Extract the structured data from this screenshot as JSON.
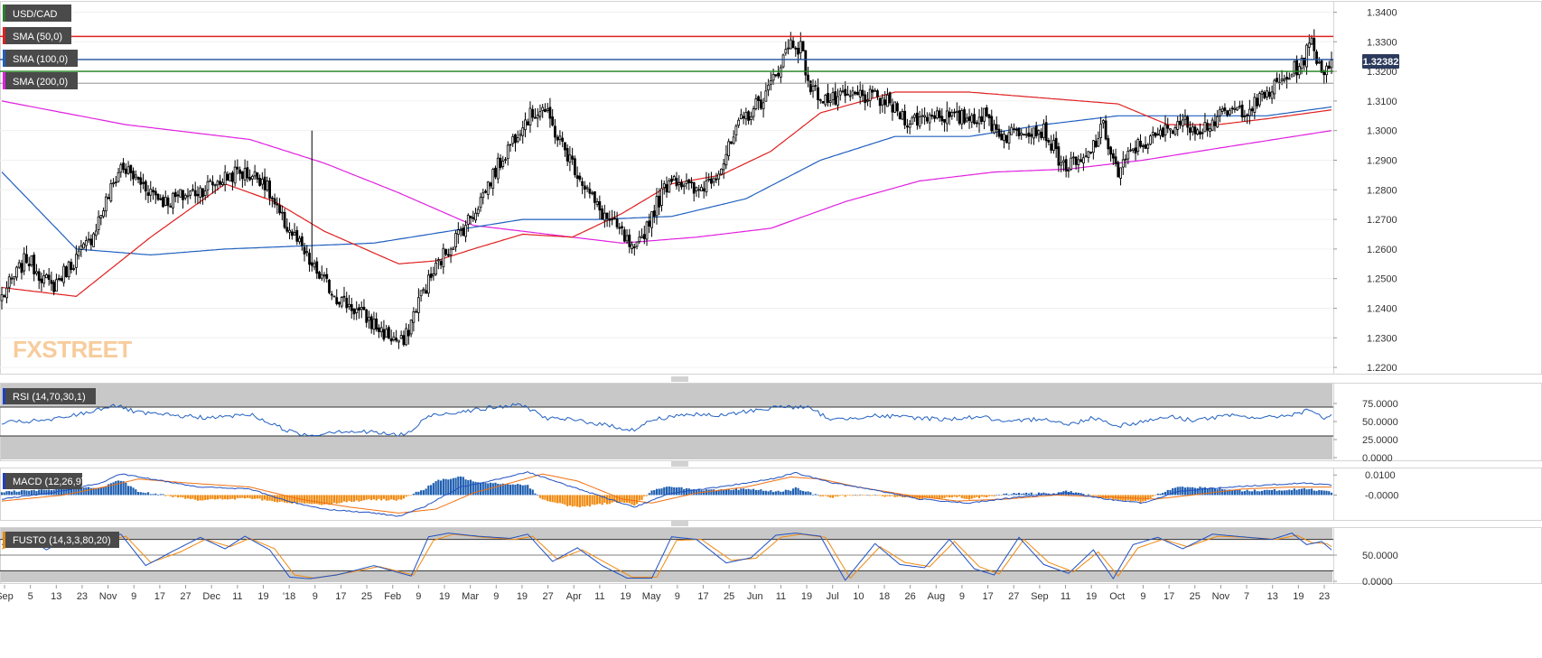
{
  "chart_data": {
    "type": "candlestick",
    "instrument": "USD/CAD",
    "indicator_labels": [
      "SMA (50,0)",
      "SMA (100,0)",
      "SMA (200,0)"
    ],
    "last_price_label": "1.32382",
    "watermark": "FXSTREET",
    "x_ticks": [
      "Sep",
      "5",
      "13",
      "23",
      "Nov",
      "9",
      "17",
      "27",
      "Dec",
      "11",
      "19",
      "'18",
      "9",
      "17",
      "25",
      "Feb",
      "9",
      "19",
      "Mar",
      "9",
      "19",
      "27",
      "Apr",
      "11",
      "19",
      "May",
      "9",
      "17",
      "25",
      "Jun",
      "11",
      "19",
      "Jul",
      "10",
      "18",
      "26",
      "Aug",
      "9",
      "17",
      "27",
      "Sep",
      "11",
      "19",
      "Oct",
      "9",
      "17",
      "25",
      "Nov",
      "7",
      "13",
      "19",
      "23"
    ],
    "y_ticks": [
      "1.3400",
      "1.3300",
      "1.3200",
      "1.3100",
      "1.3000",
      "1.2900",
      "1.2800",
      "1.2700",
      "1.2600",
      "1.2500",
      "1.2400",
      "1.2300",
      "1.2200"
    ],
    "ylim": [
      1.2185,
      1.3435
    ],
    "horizontal_levels": [
      {
        "value": 1.3318,
        "color": "#e02020"
      },
      {
        "value": 1.324,
        "color": "#1f4e99"
      },
      {
        "value": 1.32,
        "color": "#1a7f1a"
      },
      {
        "value": 1.316,
        "color": "#808080"
      }
    ],
    "anchors_close": [
      [
        0,
        1.244
      ],
      [
        10,
        1.257
      ],
      [
        20,
        1.247
      ],
      [
        35,
        1.262
      ],
      [
        48,
        1.288
      ],
      [
        58,
        1.281
      ],
      [
        66,
        1.276
      ],
      [
        80,
        1.28
      ],
      [
        95,
        1.286
      ],
      [
        105,
        1.284
      ],
      [
        112,
        1.271
      ],
      [
        118,
        1.264
      ],
      [
        125,
        1.254
      ],
      [
        135,
        1.244
      ],
      [
        145,
        1.238
      ],
      [
        155,
        1.231
      ],
      [
        162,
        1.228
      ],
      [
        168,
        1.243
      ],
      [
        178,
        1.258
      ],
      [
        190,
        1.272
      ],
      [
        198,
        1.285
      ],
      [
        210,
        1.303
      ],
      [
        218,
        1.308
      ],
      [
        224,
        1.298
      ],
      [
        232,
        1.286
      ],
      [
        240,
        1.274
      ],
      [
        250,
        1.265
      ],
      [
        255,
        1.258
      ],
      [
        262,
        1.272
      ],
      [
        270,
        1.285
      ],
      [
        280,
        1.279
      ],
      [
        290,
        1.288
      ],
      [
        298,
        1.303
      ],
      [
        308,
        1.312
      ],
      [
        318,
        1.33
      ],
      [
        322,
        1.328
      ],
      [
        326,
        1.314
      ],
      [
        334,
        1.31
      ],
      [
        346,
        1.312
      ],
      [
        356,
        1.31
      ],
      [
        366,
        1.303
      ],
      [
        376,
        1.306
      ],
      [
        384,
        1.304
      ],
      [
        396,
        1.305
      ],
      [
        404,
        1.298
      ],
      [
        412,
        1.301
      ],
      [
        420,
        1.3
      ],
      [
        428,
        1.288
      ],
      [
        436,
        1.289
      ],
      [
        444,
        1.301
      ],
      [
        450,
        1.285
      ],
      [
        456,
        1.294
      ],
      [
        466,
        1.298
      ],
      [
        474,
        1.303
      ],
      [
        484,
        1.301
      ],
      [
        494,
        1.306
      ],
      [
        504,
        1.308
      ],
      [
        512,
        1.314
      ],
      [
        518,
        1.318
      ],
      [
        524,
        1.323
      ],
      [
        528,
        1.33
      ],
      [
        532,
        1.32
      ],
      [
        536,
        1.3238
      ]
    ],
    "sma_50": [
      [
        0,
        1.247
      ],
      [
        30,
        1.244
      ],
      [
        60,
        1.264
      ],
      [
        90,
        1.282
      ],
      [
        110,
        1.276
      ],
      [
        130,
        1.266
      ],
      [
        160,
        1.255
      ],
      [
        175,
        1.256
      ],
      [
        190,
        1.26
      ],
      [
        210,
        1.265
      ],
      [
        230,
        1.264
      ],
      [
        250,
        1.272
      ],
      [
        270,
        1.282
      ],
      [
        290,
        1.285
      ],
      [
        310,
        1.293
      ],
      [
        330,
        1.306
      ],
      [
        360,
        1.313
      ],
      [
        390,
        1.313
      ],
      [
        420,
        1.311
      ],
      [
        450,
        1.309
      ],
      [
        470,
        1.302
      ],
      [
        490,
        1.302
      ],
      [
        510,
        1.304
      ],
      [
        536,
        1.307
      ]
    ],
    "sma_100": [
      [
        0,
        1.286
      ],
      [
        30,
        1.26
      ],
      [
        60,
        1.258
      ],
      [
        90,
        1.26
      ],
      [
        120,
        1.261
      ],
      [
        150,
        1.262
      ],
      [
        180,
        1.266
      ],
      [
        210,
        1.27
      ],
      [
        240,
        1.27
      ],
      [
        270,
        1.271
      ],
      [
        300,
        1.277
      ],
      [
        330,
        1.29
      ],
      [
        360,
        1.298
      ],
      [
        390,
        1.298
      ],
      [
        420,
        1.302
      ],
      [
        450,
        1.305
      ],
      [
        470,
        1.305
      ],
      [
        490,
        1.305
      ],
      [
        510,
        1.305
      ],
      [
        536,
        1.308
      ]
    ],
    "sma_200": [
      [
        0,
        1.31
      ],
      [
        50,
        1.302
      ],
      [
        100,
        1.297
      ],
      [
        130,
        1.289
      ],
      [
        160,
        1.279
      ],
      [
        190,
        1.268
      ],
      [
        220,
        1.265
      ],
      [
        250,
        1.262
      ],
      [
        280,
        1.264
      ],
      [
        310,
        1.267
      ],
      [
        340,
        1.276
      ],
      [
        370,
        1.283
      ],
      [
        400,
        1.286
      ],
      [
        430,
        1.287
      ],
      [
        460,
        1.29
      ],
      [
        490,
        1.294
      ],
      [
        536,
        1.3
      ]
    ],
    "rsi": {
      "label": "RSI (14,70,30,1)",
      "ylim": [
        0,
        100
      ],
      "y_ticks": [
        "75.0000",
        "50.0000",
        "25.0000",
        "0.0000"
      ],
      "overbought": 70,
      "oversold": 30,
      "anchors": [
        [
          0,
          48
        ],
        [
          20,
          52
        ],
        [
          35,
          63
        ],
        [
          45,
          73
        ],
        [
          55,
          62
        ],
        [
          70,
          58
        ],
        [
          85,
          55
        ],
        [
          100,
          60
        ],
        [
          110,
          45
        ],
        [
          118,
          34
        ],
        [
          125,
          31
        ],
        [
          135,
          37
        ],
        [
          150,
          35
        ],
        [
          160,
          31
        ],
        [
          165,
          36
        ],
        [
          172,
          58
        ],
        [
          185,
          64
        ],
        [
          200,
          70
        ],
        [
          210,
          73
        ],
        [
          220,
          54
        ],
        [
          232,
          52
        ],
        [
          245,
          44
        ],
        [
          255,
          38
        ],
        [
          262,
          52
        ],
        [
          275,
          60
        ],
        [
          290,
          58
        ],
        [
          300,
          64
        ],
        [
          315,
          71
        ],
        [
          325,
          69
        ],
        [
          335,
          52
        ],
        [
          350,
          58
        ],
        [
          365,
          56
        ],
        [
          380,
          53
        ],
        [
          395,
          57
        ],
        [
          405,
          48
        ],
        [
          420,
          55
        ],
        [
          430,
          45
        ],
        [
          440,
          56
        ],
        [
          450,
          44
        ],
        [
          460,
          50
        ],
        [
          470,
          57
        ],
        [
          480,
          52
        ],
        [
          495,
          58
        ],
        [
          510,
          55
        ],
        [
          520,
          60
        ],
        [
          528,
          66
        ],
        [
          532,
          55
        ],
        [
          536,
          58
        ]
      ]
    },
    "macd": {
      "label": "MACD (12,26,9)",
      "ylim": [
        -0.0115,
        0.0128
      ],
      "y_ticks": [
        "0.0100",
        "-0.0000"
      ],
      "macd_anchors": [
        [
          0,
          -0.002
        ],
        [
          20,
          0.001
        ],
        [
          40,
          0.006
        ],
        [
          48,
          0.0105
        ],
        [
          60,
          0.008
        ],
        [
          80,
          0.004
        ],
        [
          100,
          0.003
        ],
        [
          115,
          -0.003
        ],
        [
          130,
          -0.007
        ],
        [
          150,
          -0.009
        ],
        [
          160,
          -0.0105
        ],
        [
          170,
          -0.006
        ],
        [
          185,
          0.004
        ],
        [
          200,
          0.008
        ],
        [
          212,
          0.0115
        ],
        [
          225,
          0.006
        ],
        [
          240,
          0.0
        ],
        [
          255,
          -0.006
        ],
        [
          270,
          0.001
        ],
        [
          290,
          0.004
        ],
        [
          310,
          0.008
        ],
        [
          320,
          0.011
        ],
        [
          335,
          0.006
        ],
        [
          350,
          0.003
        ],
        [
          370,
          -0.002
        ],
        [
          390,
          -0.004
        ],
        [
          410,
          -0.001
        ],
        [
          430,
          0.001
        ],
        [
          445,
          -0.002
        ],
        [
          460,
          -0.004
        ],
        [
          475,
          0.002
        ],
        [
          495,
          0.004
        ],
        [
          510,
          0.005
        ],
        [
          525,
          0.006
        ],
        [
          536,
          0.005
        ]
      ],
      "signal_anchors": [
        [
          0,
          -0.003
        ],
        [
          25,
          0.0
        ],
        [
          45,
          0.005
        ],
        [
          55,
          0.008
        ],
        [
          75,
          0.006
        ],
        [
          100,
          0.004
        ],
        [
          120,
          -0.002
        ],
        [
          140,
          -0.006
        ],
        [
          160,
          -0.009
        ],
        [
          175,
          -0.007
        ],
        [
          190,
          0.001
        ],
        [
          205,
          0.006
        ],
        [
          218,
          0.0105
        ],
        [
          232,
          0.007
        ],
        [
          250,
          -0.002
        ],
        [
          262,
          -0.004
        ],
        [
          280,
          0.001
        ],
        [
          300,
          0.004
        ],
        [
          318,
          0.009
        ],
        [
          330,
          0.008
        ],
        [
          345,
          0.004
        ],
        [
          365,
          0.0
        ],
        [
          385,
          -0.003
        ],
        [
          405,
          -0.002
        ],
        [
          425,
          0.0
        ],
        [
          445,
          -0.001
        ],
        [
          465,
          -0.002
        ],
        [
          480,
          0.0
        ],
        [
          500,
          0.003
        ],
        [
          520,
          0.004
        ],
        [
          536,
          0.004
        ]
      ]
    },
    "fusto": {
      "label": "FUSTO (14,3,3,80,20)",
      "ylim": [
        0,
        100
      ],
      "y_ticks": [
        "50.0000",
        "0.0000"
      ],
      "upper": 80,
      "lower": 20,
      "k_anchors": [
        [
          0,
          70
        ],
        [
          10,
          84
        ],
        [
          18,
          60
        ],
        [
          28,
          86
        ],
        [
          40,
          80
        ],
        [
          48,
          90
        ],
        [
          58,
          30
        ],
        [
          70,
          60
        ],
        [
          80,
          84
        ],
        [
          90,
          62
        ],
        [
          98,
          86
        ],
        [
          108,
          60
        ],
        [
          116,
          8
        ],
        [
          124,
          5
        ],
        [
          135,
          12
        ],
        [
          150,
          30
        ],
        [
          165,
          10
        ],
        [
          172,
          85
        ],
        [
          180,
          92
        ],
        [
          192,
          86
        ],
        [
          205,
          82
        ],
        [
          212,
          90
        ],
        [
          222,
          38
        ],
        [
          232,
          64
        ],
        [
          242,
          30
        ],
        [
          252,
          6
        ],
        [
          262,
          6
        ],
        [
          270,
          85
        ],
        [
          280,
          80
        ],
        [
          292,
          35
        ],
        [
          302,
          45
        ],
        [
          312,
          88
        ],
        [
          320,
          92
        ],
        [
          330,
          86
        ],
        [
          340,
          2
        ],
        [
          352,
          72
        ],
        [
          362,
          32
        ],
        [
          372,
          26
        ],
        [
          382,
          80
        ],
        [
          392,
          24
        ],
        [
          400,
          12
        ],
        [
          410,
          84
        ],
        [
          420,
          32
        ],
        [
          430,
          15
        ],
        [
          440,
          60
        ],
        [
          448,
          5
        ],
        [
          456,
          70
        ],
        [
          466,
          84
        ],
        [
          476,
          62
        ],
        [
          488,
          90
        ],
        [
          500,
          85
        ],
        [
          512,
          80
        ],
        [
          520,
          92
        ],
        [
          526,
          70
        ],
        [
          532,
          76
        ],
        [
          536,
          60
        ]
      ],
      "d_anchors": [
        [
          0,
          62
        ],
        [
          12,
          80
        ],
        [
          20,
          66
        ],
        [
          30,
          82
        ],
        [
          42,
          78
        ],
        [
          50,
          86
        ],
        [
          60,
          36
        ],
        [
          72,
          56
        ],
        [
          82,
          80
        ],
        [
          92,
          66
        ],
        [
          100,
          82
        ],
        [
          110,
          62
        ],
        [
          118,
          12
        ],
        [
          126,
          6
        ],
        [
          137,
          14
        ],
        [
          152,
          28
        ],
        [
          166,
          12
        ],
        [
          174,
          78
        ],
        [
          182,
          90
        ],
        [
          194,
          84
        ],
        [
          207,
          80
        ],
        [
          214,
          86
        ],
        [
          224,
          42
        ],
        [
          234,
          60
        ],
        [
          244,
          34
        ],
        [
          254,
          8
        ],
        [
          264,
          8
        ],
        [
          272,
          78
        ],
        [
          282,
          80
        ],
        [
          294,
          40
        ],
        [
          304,
          44
        ],
        [
          314,
          84
        ],
        [
          322,
          90
        ],
        [
          332,
          84
        ],
        [
          342,
          6
        ],
        [
          354,
          66
        ],
        [
          364,
          36
        ],
        [
          374,
          28
        ],
        [
          384,
          76
        ],
        [
          394,
          28
        ],
        [
          402,
          14
        ],
        [
          412,
          80
        ],
        [
          422,
          36
        ],
        [
          432,
          18
        ],
        [
          442,
          56
        ],
        [
          450,
          10
        ],
        [
          458,
          64
        ],
        [
          468,
          80
        ],
        [
          478,
          66
        ],
        [
          490,
          86
        ],
        [
          502,
          84
        ],
        [
          514,
          80
        ],
        [
          522,
          88
        ],
        [
          528,
          74
        ],
        [
          534,
          72
        ],
        [
          536,
          66
        ]
      ]
    }
  }
}
